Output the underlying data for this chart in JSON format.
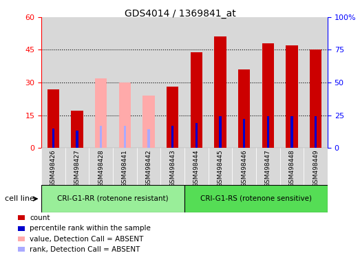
{
  "title": "GDS4014 / 1369841_at",
  "samples": [
    "GSM498426",
    "GSM498427",
    "GSM498428",
    "GSM498441",
    "GSM498442",
    "GSM498443",
    "GSM498444",
    "GSM498445",
    "GSM498446",
    "GSM498447",
    "GSM498448",
    "GSM498449"
  ],
  "count_values": [
    27,
    17,
    null,
    null,
    null,
    28,
    44,
    51,
    36,
    48,
    47,
    45
  ],
  "absent_values": [
    null,
    null,
    32,
    30,
    24,
    null,
    null,
    null,
    null,
    null,
    null,
    null
  ],
  "percentile_values": [
    15,
    13,
    null,
    null,
    null,
    17,
    19,
    24,
    22,
    24,
    24,
    24
  ],
  "absent_rank_values": [
    null,
    null,
    17,
    17,
    14,
    null,
    null,
    null,
    null,
    null,
    null,
    null
  ],
  "group1_count": 6,
  "group2_count": 6,
  "group1_label": "CRI-G1-RR (rotenone resistant)",
  "group2_label": "CRI-G1-RS (rotenone sensitive)",
  "cell_line_label": "cell line",
  "ylim_left": [
    0,
    60
  ],
  "ylim_right": [
    0,
    100
  ],
  "yticks_left": [
    0,
    15,
    30,
    45,
    60
  ],
  "yticks_right": [
    0,
    25,
    50,
    75,
    100
  ],
  "count_color": "#cc0000",
  "absent_color": "#ffaaaa",
  "percentile_color": "#0000cc",
  "absent_rank_color": "#aaaaff",
  "col_bg_color": "#d8d8d8",
  "group1_cell_color": "#99ee99",
  "group2_cell_color": "#55dd55",
  "legend_items": [
    {
      "label": "count",
      "color": "#cc0000"
    },
    {
      "label": "percentile rank within the sample",
      "color": "#0000cc"
    },
    {
      "label": "value, Detection Call = ABSENT",
      "color": "#ffaaaa"
    },
    {
      "label": "rank, Detection Call = ABSENT",
      "color": "#aaaaff"
    }
  ]
}
